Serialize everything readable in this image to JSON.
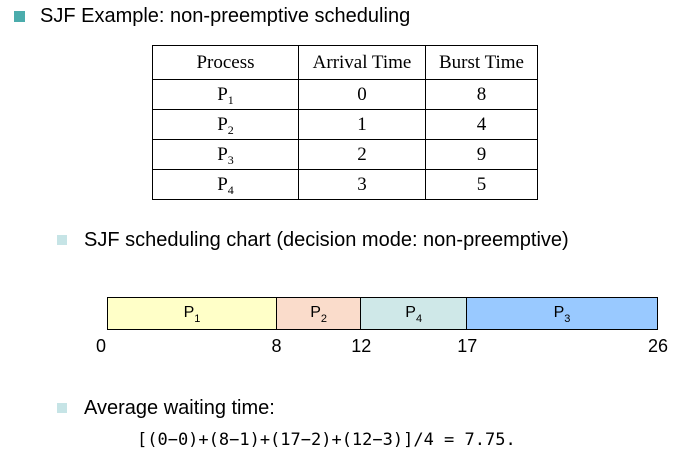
{
  "heading": "SJF Example: non-preemptive scheduling",
  "table": {
    "headers": [
      "Process",
      "Arrival Time",
      "Burst Time"
    ],
    "rows": [
      {
        "name": "P",
        "sub": "1",
        "arrival": "0",
        "burst": "8"
      },
      {
        "name": "P",
        "sub": "2",
        "arrival": "1",
        "burst": "4"
      },
      {
        "name": "P",
        "sub": "3",
        "arrival": "2",
        "burst": "9"
      },
      {
        "name": "P",
        "sub": "4",
        "arrival": "3",
        "burst": "5"
      }
    ]
  },
  "chart_heading": "SJF scheduling chart (decision mode: non-preemptive)",
  "gantt": {
    "segments": [
      {
        "name": "P",
        "sub": "1",
        "start": 0,
        "end": 8,
        "color": "#ffffc8"
      },
      {
        "name": "P",
        "sub": "2",
        "start": 8,
        "end": 12,
        "color": "#fadccb"
      },
      {
        "name": "P",
        "sub": "4",
        "start": 12,
        "end": 17,
        "color": "#cfe8e8"
      },
      {
        "name": "P",
        "sub": "3",
        "start": 17,
        "end": 26,
        "color": "#99c9ff"
      }
    ],
    "ticks": [
      "0",
      "8",
      "12",
      "17",
      "26"
    ]
  },
  "avg_heading": "Average waiting time:",
  "formula": "[(0−0)+(8−1)+(17−2)+(12−3)]/4 = 7.75."
}
